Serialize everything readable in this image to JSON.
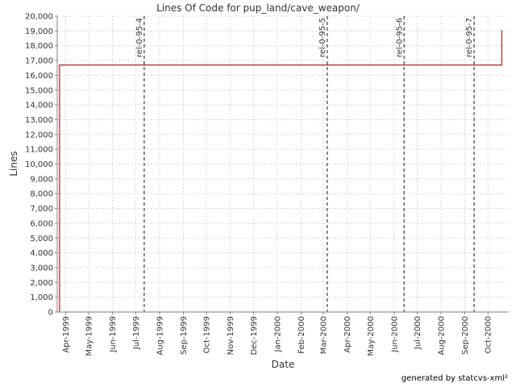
{
  "footer": "generated by statcvs-xml²",
  "chart_data": {
    "type": "line",
    "title": "Lines Of Code for pup_land/cave_weapon/",
    "xlabel": "Date",
    "ylabel": "Lines",
    "ylim": [
      0,
      20000
    ],
    "xlim": [
      "1999-03-21",
      "2000-10-28"
    ],
    "grid": true,
    "yticks": [
      0,
      1000,
      2000,
      3000,
      4000,
      5000,
      6000,
      7000,
      8000,
      9000,
      10000,
      11000,
      12000,
      13000,
      14000,
      15000,
      16000,
      17000,
      18000,
      19000,
      20000
    ],
    "ytick_labels": [
      "0",
      "1,000",
      "2,000",
      "3,000",
      "4,000",
      "5,000",
      "6,000",
      "7,000",
      "8,000",
      "9,000",
      "10,000",
      "11,000",
      "12,000",
      "13,000",
      "14,000",
      "15,000",
      "16,000",
      "17,000",
      "18,000",
      "19,000",
      "20,000"
    ],
    "xticks": [
      "1999-04-01",
      "1999-05-01",
      "1999-06-01",
      "1999-07-01",
      "1999-08-01",
      "1999-09-01",
      "1999-10-01",
      "1999-11-01",
      "1999-12-01",
      "2000-01-01",
      "2000-02-01",
      "2000-03-01",
      "2000-04-01",
      "2000-05-01",
      "2000-06-01",
      "2000-07-01",
      "2000-08-01",
      "2000-09-01",
      "2000-10-01"
    ],
    "xtick_labels": [
      "Apr-1999",
      "May-1999",
      "Jun-1999",
      "Jul-1999",
      "Aug-1999",
      "Sep-1999",
      "Oct-1999",
      "Nov-1999",
      "Dec-1999",
      "Jan-2000",
      "Feb-2000",
      "Mar-2000",
      "Apr-2000",
      "May-2000",
      "Jun-2000",
      "Jul-2000",
      "Aug-2000",
      "Sep-2000",
      "Oct-2000"
    ],
    "series": [
      {
        "color": "#b22222",
        "step": true,
        "points": [
          {
            "x": "1999-03-24",
            "y": 0
          },
          {
            "x": "1999-03-24",
            "y": 16700
          },
          {
            "x": "2000-10-19",
            "y": 16700
          },
          {
            "x": "2000-10-19",
            "y": 19050
          }
        ]
      }
    ],
    "markers": [
      {
        "x": "1999-07-12",
        "label": "rel-0-95-4"
      },
      {
        "x": "2000-03-06",
        "label": "rel-0-95-5"
      },
      {
        "x": "2000-06-14",
        "label": "rel-0-95-6"
      },
      {
        "x": "2000-09-13",
        "label": "rel-0-95-7"
      }
    ]
  }
}
